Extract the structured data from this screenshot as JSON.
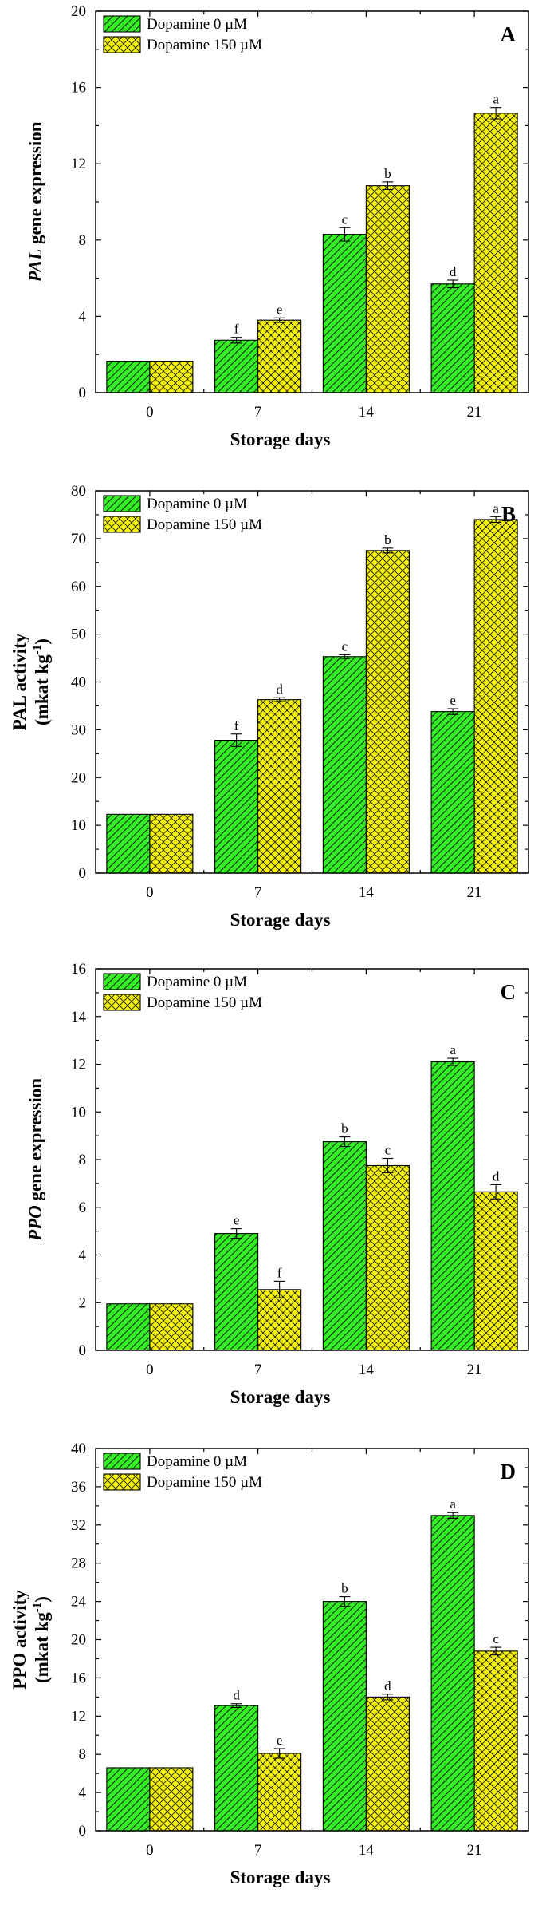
{
  "colors": {
    "series0_fill": "#33ee22",
    "series1_fill": "#f5f20a",
    "hatch": "#1a1a1a"
  },
  "chart_data": [
    {
      "panel": "A",
      "type": "bar",
      "ylabel_italic": "PAL",
      "ylabel_rest": " gene expression",
      "xlabel": "Storage days",
      "categories": [
        "0",
        "7",
        "14",
        "21"
      ],
      "ylim": [
        0,
        20
      ],
      "yticks": [
        0,
        4,
        8,
        12,
        16,
        20
      ],
      "series": [
        {
          "name": "Dopamine 0 µM",
          "values": [
            1.65,
            2.75,
            8.3,
            5.7
          ],
          "errors": [
            0,
            0.15,
            0.35,
            0.2
          ],
          "labels": [
            "",
            "f",
            "c",
            "d"
          ]
        },
        {
          "name": "Dopamine 150 µM",
          "values": [
            1.65,
            3.8,
            10.85,
            14.65
          ],
          "errors": [
            0,
            0.12,
            0.2,
            0.3
          ],
          "labels": [
            "",
            "e",
            "b",
            "a"
          ]
        }
      ]
    },
    {
      "panel": "B",
      "type": "bar",
      "ylabel_line1": "PAL activity",
      "ylabel_line2": "(mkat kg",
      "ylabel_sup": "-1",
      "ylabel_close": ")",
      "xlabel": "Storage days",
      "categories": [
        "0",
        "7",
        "14",
        "21"
      ],
      "ylim": [
        0,
        80
      ],
      "yticks": [
        0,
        10,
        20,
        30,
        40,
        50,
        60,
        70,
        80
      ],
      "series": [
        {
          "name": "Dopamine 0 µM",
          "values": [
            12.3,
            27.8,
            45.3,
            33.8
          ],
          "errors": [
            0,
            1.3,
            0.4,
            0.6
          ],
          "labels": [
            "",
            "f",
            "c",
            "e"
          ]
        },
        {
          "name": "Dopamine 150 µM",
          "values": [
            12.3,
            36.3,
            67.5,
            74.0
          ],
          "errors": [
            0,
            0.4,
            0.5,
            0.6
          ],
          "labels": [
            "",
            "d",
            "b",
            "a"
          ]
        }
      ]
    },
    {
      "panel": "C",
      "type": "bar",
      "ylabel_italic": "PPO",
      "ylabel_rest": " gene expression",
      "xlabel": "Storage days",
      "categories": [
        "0",
        "7",
        "14",
        "21"
      ],
      "ylim": [
        0,
        16
      ],
      "yticks": [
        0,
        2,
        4,
        6,
        8,
        10,
        12,
        14,
        16
      ],
      "series": [
        {
          "name": "Dopamine 0 µM",
          "values": [
            1.95,
            4.9,
            8.75,
            12.1
          ],
          "errors": [
            0,
            0.2,
            0.2,
            0.15
          ],
          "labels": [
            "",
            "e",
            "b",
            "a"
          ]
        },
        {
          "name": "Dopamine 150 µM",
          "values": [
            1.95,
            2.55,
            7.75,
            6.65
          ],
          "errors": [
            0,
            0.35,
            0.3,
            0.3
          ],
          "labels": [
            "",
            "f",
            "c",
            "d"
          ]
        }
      ]
    },
    {
      "panel": "D",
      "type": "bar",
      "ylabel_line1": "PPO activity",
      "ylabel_line2": "(mkat kg",
      "ylabel_sup": "-1",
      "ylabel_close": ")",
      "xlabel": "Storage days",
      "categories": [
        "0",
        "7",
        "14",
        "21"
      ],
      "ylim": [
        0,
        40
      ],
      "yticks": [
        0,
        4,
        8,
        12,
        16,
        20,
        24,
        28,
        32,
        36,
        40
      ],
      "series": [
        {
          "name": "Dopamine 0 µM",
          "values": [
            6.6,
            13.1,
            24.0,
            33.0
          ],
          "errors": [
            0,
            0.2,
            0.5,
            0.3
          ],
          "labels": [
            "",
            "d",
            "b",
            "a"
          ]
        },
        {
          "name": "Dopamine 150 µM",
          "values": [
            6.6,
            8.1,
            14.0,
            18.8
          ],
          "errors": [
            0,
            0.5,
            0.3,
            0.4
          ],
          "labels": [
            "",
            "e",
            "d",
            "c"
          ]
        }
      ]
    }
  ]
}
